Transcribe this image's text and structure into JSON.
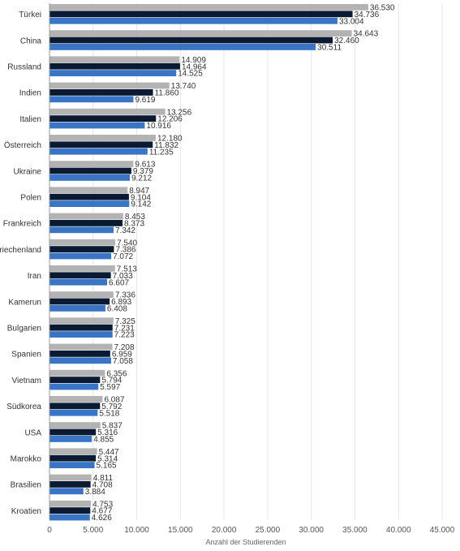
{
  "chart_data": {
    "type": "bar",
    "orientation": "horizontal",
    "categories": [
      "Türkei",
      "China",
      "Russland",
      "Indien",
      "Italien",
      "Österreich",
      "Ukraine",
      "Polen",
      "Frankreich",
      "Griechenland",
      "Iran",
      "Kamerun",
      "Bulgarien",
      "Spanien",
      "Vietnam",
      "Südkorea",
      "USA",
      "Marokko",
      "Brasilien",
      "Kroatien"
    ],
    "series": [
      {
        "color": "#b3b3b3",
        "values": [
          36530,
          34643,
          14909,
          13740,
          13256,
          12180,
          9613,
          8947,
          8453,
          7540,
          7513,
          7336,
          7325,
          7208,
          6356,
          6087,
          5837,
          5447,
          4811,
          4753
        ],
        "labels": [
          "36.530",
          "34.643",
          "14.909",
          "13.740",
          "13.256",
          "12.180",
          "9.613",
          "8.947",
          "8.453",
          "7.540",
          "7.513",
          "7.336",
          "7.325",
          "7.208",
          "6.356",
          "6.087",
          "5.837",
          "5.447",
          "4.811",
          "4.753"
        ]
      },
      {
        "color": "#0b1a33",
        "values": [
          34736,
          32460,
          14964,
          11860,
          12206,
          11832,
          9379,
          9104,
          8373,
          7386,
          7033,
          6893,
          7231,
          6959,
          5794,
          5792,
          5316,
          5314,
          4708,
          4677
        ],
        "labels": [
          "34.736",
          "32.460",
          "14.964",
          "11.860",
          "12.206",
          "11.832",
          "9.379",
          "9.104",
          "8.373",
          "7.386",
          "7.033",
          "6.893",
          "7.231",
          "6.959",
          "5.794",
          "5.792",
          "5.316",
          "5.314",
          "4.708",
          "4.677"
        ]
      },
      {
        "color": "#3a74c4",
        "values": [
          33004,
          30511,
          14525,
          9619,
          10916,
          11235,
          9212,
          9142,
          7342,
          7072,
          6607,
          6408,
          7223,
          7058,
          5597,
          5518,
          4855,
          5165,
          3884,
          4626
        ],
        "labels": [
          "33.004",
          "30.511",
          "14.525",
          "9.619",
          "10.916",
          "11.235",
          "9.212",
          "9.142",
          "7.342",
          "7.072",
          "6.607",
          "6.408",
          "7.223",
          "7.058",
          "5.597",
          "5.518",
          "4.855",
          "5.165",
          "3.884",
          "4.626"
        ]
      }
    ],
    "x_ticks": [
      0,
      5000,
      10000,
      15000,
      20000,
      25000,
      30000,
      35000,
      40000,
      45000
    ],
    "x_tick_labels": [
      "0",
      "5.000",
      "10.000",
      "15.000",
      "20.000",
      "25.000",
      "30.000",
      "35.000",
      "40.000",
      "45.000"
    ],
    "xlim": [
      0,
      45000
    ],
    "xlabel": "Anzahl der Studierenden",
    "ylabel": "",
    "title": "",
    "grid": true,
    "legend": "none"
  }
}
